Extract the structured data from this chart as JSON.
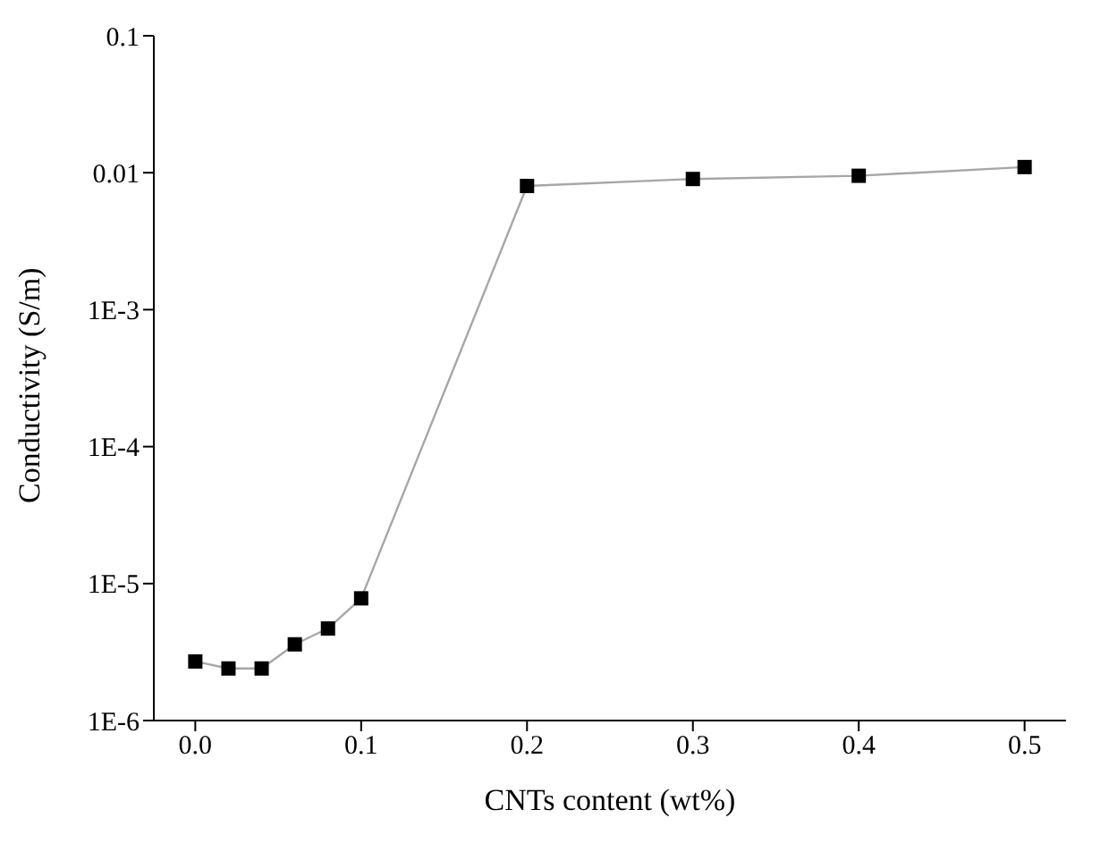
{
  "chart_data": {
    "type": "line",
    "xlabel": "CNTs content (wt%)",
    "ylabel": "Conductivity (S/m)",
    "log": "y",
    "x": [
      0,
      0.02,
      0.04,
      0.06,
      0.08,
      0.1,
      0.2,
      0.3,
      0.4,
      0.5
    ],
    "series": [
      {
        "color": "#000000",
        "values": [
          2.7e-06,
          2.4e-06,
          2.4e-06,
          3.6e-06,
          4.7e-06,
          7.8e-06,
          0.008,
          0.009,
          0.0095,
          0.011
        ]
      }
    ],
    "xlim": [
      -0.025,
      0.525
    ],
    "xticks": [
      {
        "value": 0,
        "label": "0.0"
      },
      0.1,
      0.2,
      0.3,
      0.4,
      0.5
    ],
    "ylim": [
      1e-06,
      0.1
    ],
    "yticks": [
      {
        "value": 1e-06,
        "label": "1E-6"
      },
      {
        "value": 1e-05,
        "label": "1E-5"
      },
      {
        "value": 0.0001,
        "label": "1E-4"
      },
      {
        "value": 0.001,
        "label": "1E-3"
      },
      0.01,
      0.1
    ],
    "marker": "square",
    "grid": false,
    "legend": false
  }
}
